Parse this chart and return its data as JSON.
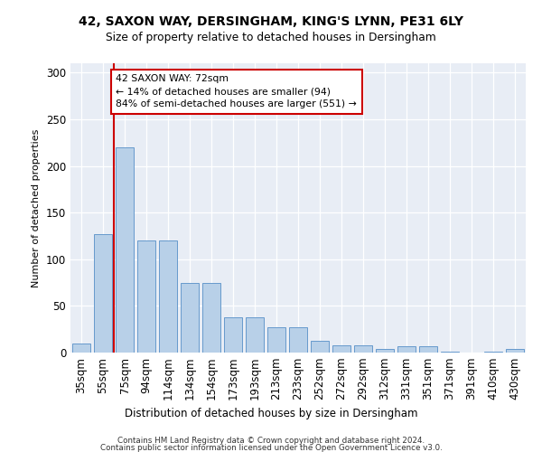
{
  "title1": "42, SAXON WAY, DERSINGHAM, KING'S LYNN, PE31 6LY",
  "title2": "Size of property relative to detached houses in Dersingham",
  "xlabel": "Distribution of detached houses by size in Dersingham",
  "ylabel": "Number of detached properties",
  "categories": [
    "35sqm",
    "55sqm",
    "75sqm",
    "94sqm",
    "114sqm",
    "134sqm",
    "154sqm",
    "173sqm",
    "193sqm",
    "213sqm",
    "233sqm",
    "252sqm",
    "272sqm",
    "292sqm",
    "312sqm",
    "331sqm",
    "351sqm",
    "371sqm",
    "391sqm",
    "410sqm",
    "430sqm"
  ],
  "values": [
    10,
    127,
    220,
    120,
    120,
    75,
    75,
    38,
    38,
    27,
    27,
    13,
    8,
    8,
    4,
    7,
    7,
    1,
    0,
    1,
    4
  ],
  "bar_color": "#b8d0e8",
  "bar_edge_color": "#6699cc",
  "vline_color": "#cc0000",
  "annotation_text": "42 SAXON WAY: 72sqm\n← 14% of detached houses are smaller (94)\n84% of semi-detached houses are larger (551) →",
  "annotation_box_edgecolor": "#cc0000",
  "background_color": "#e8edf5",
  "ylim_max": 310,
  "footer1": "Contains HM Land Registry data © Crown copyright and database right 2024.",
  "footer2": "Contains public sector information licensed under the Open Government Licence v3.0."
}
